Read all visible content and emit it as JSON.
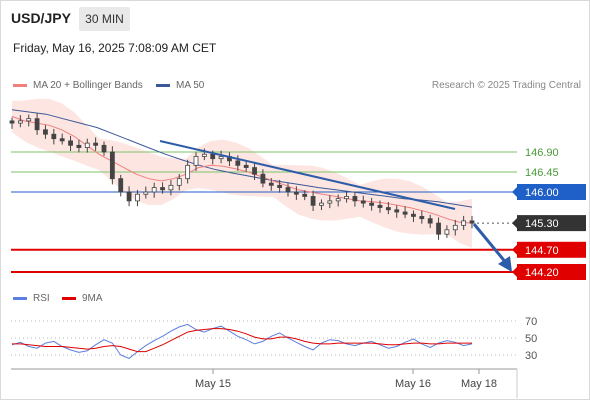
{
  "header": {
    "symbol": "USD/JPY",
    "timeframe": "30 MIN",
    "datetime": "Friday, May 16, 2025 7:08:09 AM CET"
  },
  "legend": {
    "ma20_label": "MA 20 + Bollinger Bands",
    "ma50_label": "MA 50",
    "rsi_label": "RSI",
    "ma9_label": "9MA",
    "credit": "Research © 2025 Trading Central"
  },
  "colors": {
    "ma20": "#f08080",
    "band_fill": "#fde0dc",
    "ma50": "#3b5998",
    "candle": "#444444",
    "resistance": "#7cc26a",
    "pivot": "#1f5fc8",
    "support": "#e00000",
    "arrow": "#2d5da8",
    "rsi": "#5b7fe0",
    "rsi_ma": "#e00000"
  },
  "chart_data": {
    "type": "candlestick",
    "price_levels": [
      {
        "value": 146.9,
        "label": "146.90",
        "kind": "resistance"
      },
      {
        "value": 146.45,
        "label": "146.45",
        "kind": "resistance"
      },
      {
        "value": 146.0,
        "label": "146.00",
        "kind": "pivot"
      },
      {
        "value": 145.3,
        "label": "145.30",
        "kind": "current"
      },
      {
        "value": 144.7,
        "label": "144.70",
        "kind": "support"
      },
      {
        "value": 144.2,
        "label": "144.20",
        "kind": "support"
      }
    ],
    "x_ticks": [
      "May 15",
      "May 16",
      "May 18"
    ],
    "price_series": [
      147.55,
      147.6,
      147.65,
      147.4,
      147.3,
      147.2,
      147.15,
      147.05,
      147.0,
      147.1,
      147.05,
      146.9,
      146.3,
      146.0,
      145.8,
      145.95,
      146.0,
      146.1,
      146.05,
      146.15,
      146.3,
      146.6,
      146.8,
      146.85,
      146.75,
      146.8,
      146.7,
      146.6,
      146.55,
      146.4,
      146.2,
      146.15,
      146.1,
      146.0,
      145.95,
      145.9,
      145.7,
      145.75,
      145.8,
      145.85,
      145.9,
      145.8,
      145.75,
      145.7,
      145.65,
      145.6,
      145.55,
      145.5,
      145.45,
      145.4,
      145.3,
      145.05,
      145.15,
      145.25,
      145.35,
      145.3
    ],
    "ma20_series": [
      147.7,
      147.6,
      147.55,
      147.5,
      147.4,
      147.25,
      147.05,
      146.85,
      146.7,
      146.55,
      146.4,
      146.3,
      146.25,
      146.3,
      146.4,
      146.55,
      146.6,
      146.58,
      146.52,
      146.45,
      146.35,
      146.25,
      146.15,
      146.05,
      146.0,
      145.95,
      145.9,
      145.85,
      145.8,
      145.78,
      145.75,
      145.7,
      145.65,
      145.58,
      145.5,
      145.4,
      145.32,
      145.3
    ],
    "ma50_series": [
      147.85,
      147.8,
      147.75,
      147.65,
      147.55,
      147.45,
      147.3,
      147.15,
      147.0,
      146.85,
      146.72,
      146.6,
      146.5,
      146.42,
      146.35,
      146.28,
      146.22,
      146.16,
      146.1,
      146.05,
      146.0,
      145.95,
      145.9,
      145.85,
      145.82,
      145.78,
      145.72,
      145.66
    ],
    "rsi": {
      "levels": [
        70,
        50,
        30
      ],
      "ticks": [
        "70",
        "50",
        "30"
      ],
      "series": [
        42,
        45,
        40,
        38,
        44,
        46,
        40,
        36,
        33,
        35,
        42,
        48,
        44,
        30,
        26,
        34,
        41,
        47,
        52,
        58,
        63,
        66,
        60,
        57,
        61,
        64,
        58,
        52,
        48,
        43,
        46,
        52,
        56,
        50,
        45,
        40,
        36,
        44,
        48,
        47,
        43,
        41,
        44,
        46,
        42,
        38,
        40,
        45,
        49,
        43,
        39,
        44,
        47,
        45,
        41,
        43
      ],
      "ma_series": [
        43,
        43,
        42,
        41,
        40,
        40,
        40,
        39,
        38,
        37,
        38,
        40,
        41,
        40,
        37,
        34,
        34,
        38,
        42,
        47,
        52,
        57,
        59,
        60,
        61,
        61,
        60,
        58,
        55,
        51,
        49,
        49,
        51,
        51,
        49,
        46,
        44,
        43,
        43,
        44,
        44,
        44,
        44,
        44,
        43,
        42,
        42,
        43,
        44,
        44,
        43,
        43,
        44,
        44,
        44,
        44
      ]
    }
  }
}
